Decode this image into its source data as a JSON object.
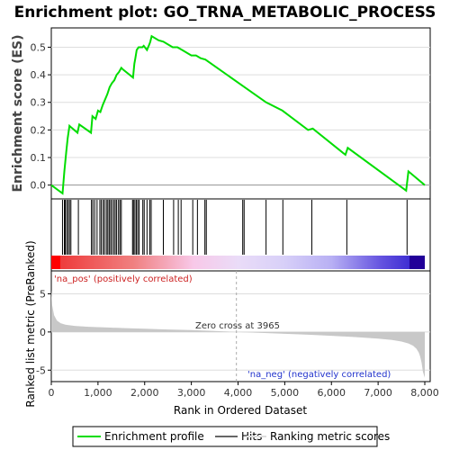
{
  "title": "Enrichment plot: GO_TRNA_METABOLIC_PROCESS",
  "colors": {
    "profile": "#00dd00",
    "hits": "#000000",
    "metric_fill": "#c8c8c8",
    "pos_label": "#cc2222",
    "neg_label": "#2233cc",
    "grid": "#dddddd",
    "bar_pos_dark": "#ee3333",
    "bar_neg_dark": "#3322cc",
    "bar_end_pos": "#ff0000",
    "bar_end_neg": "#220099"
  },
  "legend": {
    "profile_label": "Enrichment profile",
    "hits_label": "Hits",
    "metric_label": "Ranking metric scores"
  },
  "chart_data": [
    {
      "type": "line",
      "name": "enrichment",
      "ylabel": "Enrichment score (ES)",
      "xlim": [
        0,
        8000
      ],
      "ylim": [
        -0.05,
        0.57
      ],
      "yticks": [
        "0.0",
        "0.1",
        "0.2",
        "0.3",
        "0.4",
        "0.5"
      ],
      "ytick_values": [
        0.0,
        0.1,
        0.2,
        0.3,
        0.4,
        0.5
      ],
      "grid": true,
      "x": [
        0,
        240,
        280,
        320,
        350,
        390,
        420,
        560,
        600,
        850,
        880,
        950,
        1000,
        1050,
        1100,
        1200,
        1250,
        1300,
        1350,
        1400,
        1450,
        1500,
        1530,
        1750,
        1780,
        1800,
        1830,
        1870,
        1950,
        1980,
        2050,
        2100,
        2120,
        2150,
        2300,
        2400,
        2600,
        2700,
        2800,
        3000,
        3100,
        3200,
        3300,
        4100,
        4600,
        4950,
        5500,
        5600,
        6300,
        6350,
        7600,
        7650,
        8000
      ],
      "y": [
        0.0,
        -0.03,
        0.05,
        0.12,
        0.17,
        0.215,
        0.21,
        0.19,
        0.22,
        0.19,
        0.25,
        0.24,
        0.27,
        0.265,
        0.29,
        0.33,
        0.355,
        0.37,
        0.38,
        0.4,
        0.41,
        0.425,
        0.42,
        0.39,
        0.44,
        0.46,
        0.49,
        0.5,
        0.5,
        0.505,
        0.49,
        0.51,
        0.52,
        0.54,
        0.525,
        0.52,
        0.5,
        0.5,
        0.49,
        0.47,
        0.47,
        0.46,
        0.455,
        0.36,
        0.3,
        0.27,
        0.2,
        0.205,
        0.11,
        0.135,
        -0.02,
        0.05,
        0.0
      ]
    },
    {
      "type": "bar",
      "name": "hits",
      "xlim": [
        0,
        8000
      ],
      "hit_ranks": [
        240,
        280,
        300,
        330,
        360,
        390,
        420,
        580,
        860,
        890,
        930,
        980,
        1040,
        1070,
        1110,
        1140,
        1180,
        1210,
        1240,
        1270,
        1300,
        1340,
        1370,
        1400,
        1440,
        1470,
        1500,
        1740,
        1760,
        1790,
        1820,
        1850,
        1880,
        1960,
        1990,
        2050,
        2110,
        2140,
        2400,
        2620,
        2720,
        2780,
        3030,
        3130,
        3290,
        3320,
        4100,
        4130,
        4600,
        4960,
        5580,
        6330,
        7620
      ]
    },
    {
      "type": "area",
      "name": "ranked_metric",
      "xlabel": "Rank in Ordered Dataset",
      "ylabel": "Ranked list metric (PreRanked)",
      "xlim": [
        0,
        8000
      ],
      "ylim": [
        -6.5,
        8
      ],
      "yticks": [
        "-5",
        "0",
        "5"
      ],
      "ytick_values": [
        -5,
        0,
        5
      ],
      "xticks": [
        "0",
        "1,000",
        "2,000",
        "3,000",
        "4,000",
        "5,000",
        "6,000",
        "7,000",
        "8,000"
      ],
      "xtick_values": [
        0,
        1000,
        2000,
        3000,
        4000,
        5000,
        6000,
        7000,
        8000
      ],
      "x": [
        0,
        20,
        60,
        120,
        200,
        300,
        500,
        800,
        1200,
        1600,
        2000,
        2500,
        3000,
        3500,
        3965,
        4500,
        5000,
        5500,
        6000,
        6500,
        7000,
        7300,
        7500,
        7650,
        7750,
        7820,
        7870,
        7900,
        7930,
        7960,
        8000
      ],
      "y": [
        5.5,
        3.5,
        2.2,
        1.5,
        1.15,
        0.95,
        0.8,
        0.68,
        0.58,
        0.5,
        0.42,
        0.33,
        0.24,
        0.12,
        0.0,
        -0.12,
        -0.24,
        -0.36,
        -0.5,
        -0.66,
        -0.86,
        -1.05,
        -1.25,
        -1.5,
        -1.8,
        -2.2,
        -2.7,
        -3.2,
        -4.0,
        -5.2,
        -6.0
      ],
      "zero_cross": 3965,
      "annotations": {
        "pos_label": "'na_pos' (positively correlated)",
        "zero_cross_label": "Zero cross at 3965",
        "neg_label": "'na_neg' (negatively correlated)"
      }
    }
  ]
}
